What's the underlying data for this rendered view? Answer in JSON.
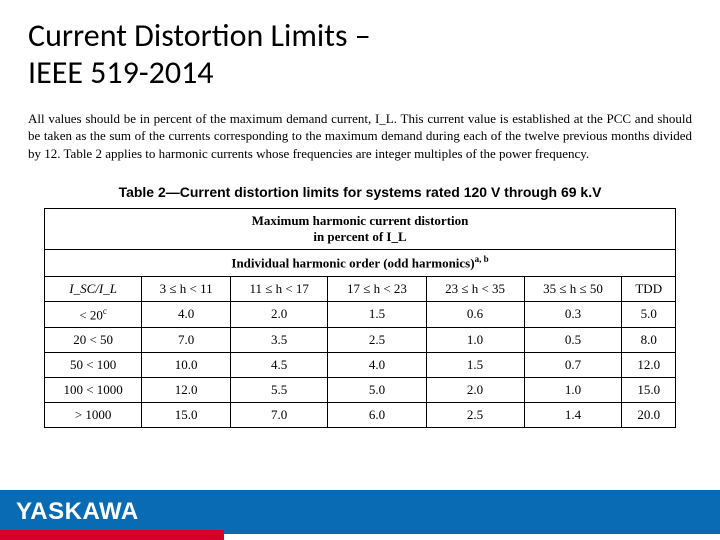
{
  "title_line1": "Current Distortion Limits –",
  "title_line2": "IEEE 519-2014",
  "description": "All values should be in percent of the maximum demand current, I_L. This current value is established at the PCC and should be taken as the sum of the currents corresponding to the maximum demand during each of the twelve previous months divided by 12. Table 2 applies to harmonic currents whose frequencies are integer multiples of the power frequency.",
  "table": {
    "caption": "Table 2—Current distortion limits for systems rated 120 V through 69 k.V",
    "header_main_a": "Maximum harmonic current distortion",
    "header_main_b": "in percent of I_L",
    "header_sub": "Individual harmonic order (odd harmonics)",
    "header_sub_sup": "a, b",
    "columns": [
      "I_SC/I_L",
      "3 ≤ h < 11",
      "11 ≤ h < 17",
      "17 ≤ h < 23",
      "23 ≤ h < 35",
      "35 ≤ h ≤ 50",
      "TDD"
    ],
    "col0_sup": "",
    "rows": [
      {
        "label": "< 20",
        "label_sup": "c",
        "cells": [
          "4.0",
          "2.0",
          "1.5",
          "0.6",
          "0.3",
          "5.0"
        ]
      },
      {
        "label": "20 < 50",
        "label_sup": "",
        "cells": [
          "7.0",
          "3.5",
          "2.5",
          "1.0",
          "0.5",
          "8.0"
        ]
      },
      {
        "label": "50 < 100",
        "label_sup": "",
        "cells": [
          "10.0",
          "4.5",
          "4.0",
          "1.5",
          "0.7",
          "12.0"
        ]
      },
      {
        "label": "100 < 1000",
        "label_sup": "",
        "cells": [
          "12.0",
          "5.5",
          "5.0",
          "2.0",
          "1.0",
          "15.0"
        ]
      },
      {
        "label": "> 1000",
        "label_sup": "",
        "cells": [
          "15.0",
          "7.0",
          "6.0",
          "2.5",
          "1.4",
          "20.0"
        ]
      }
    ]
  },
  "logo_text": "YASKAWA",
  "colors": {
    "blue_bar": "#0a6bb5",
    "red_bar": "#d40029",
    "logo_text": "#ffffff",
    "background": "#ffffff"
  }
}
